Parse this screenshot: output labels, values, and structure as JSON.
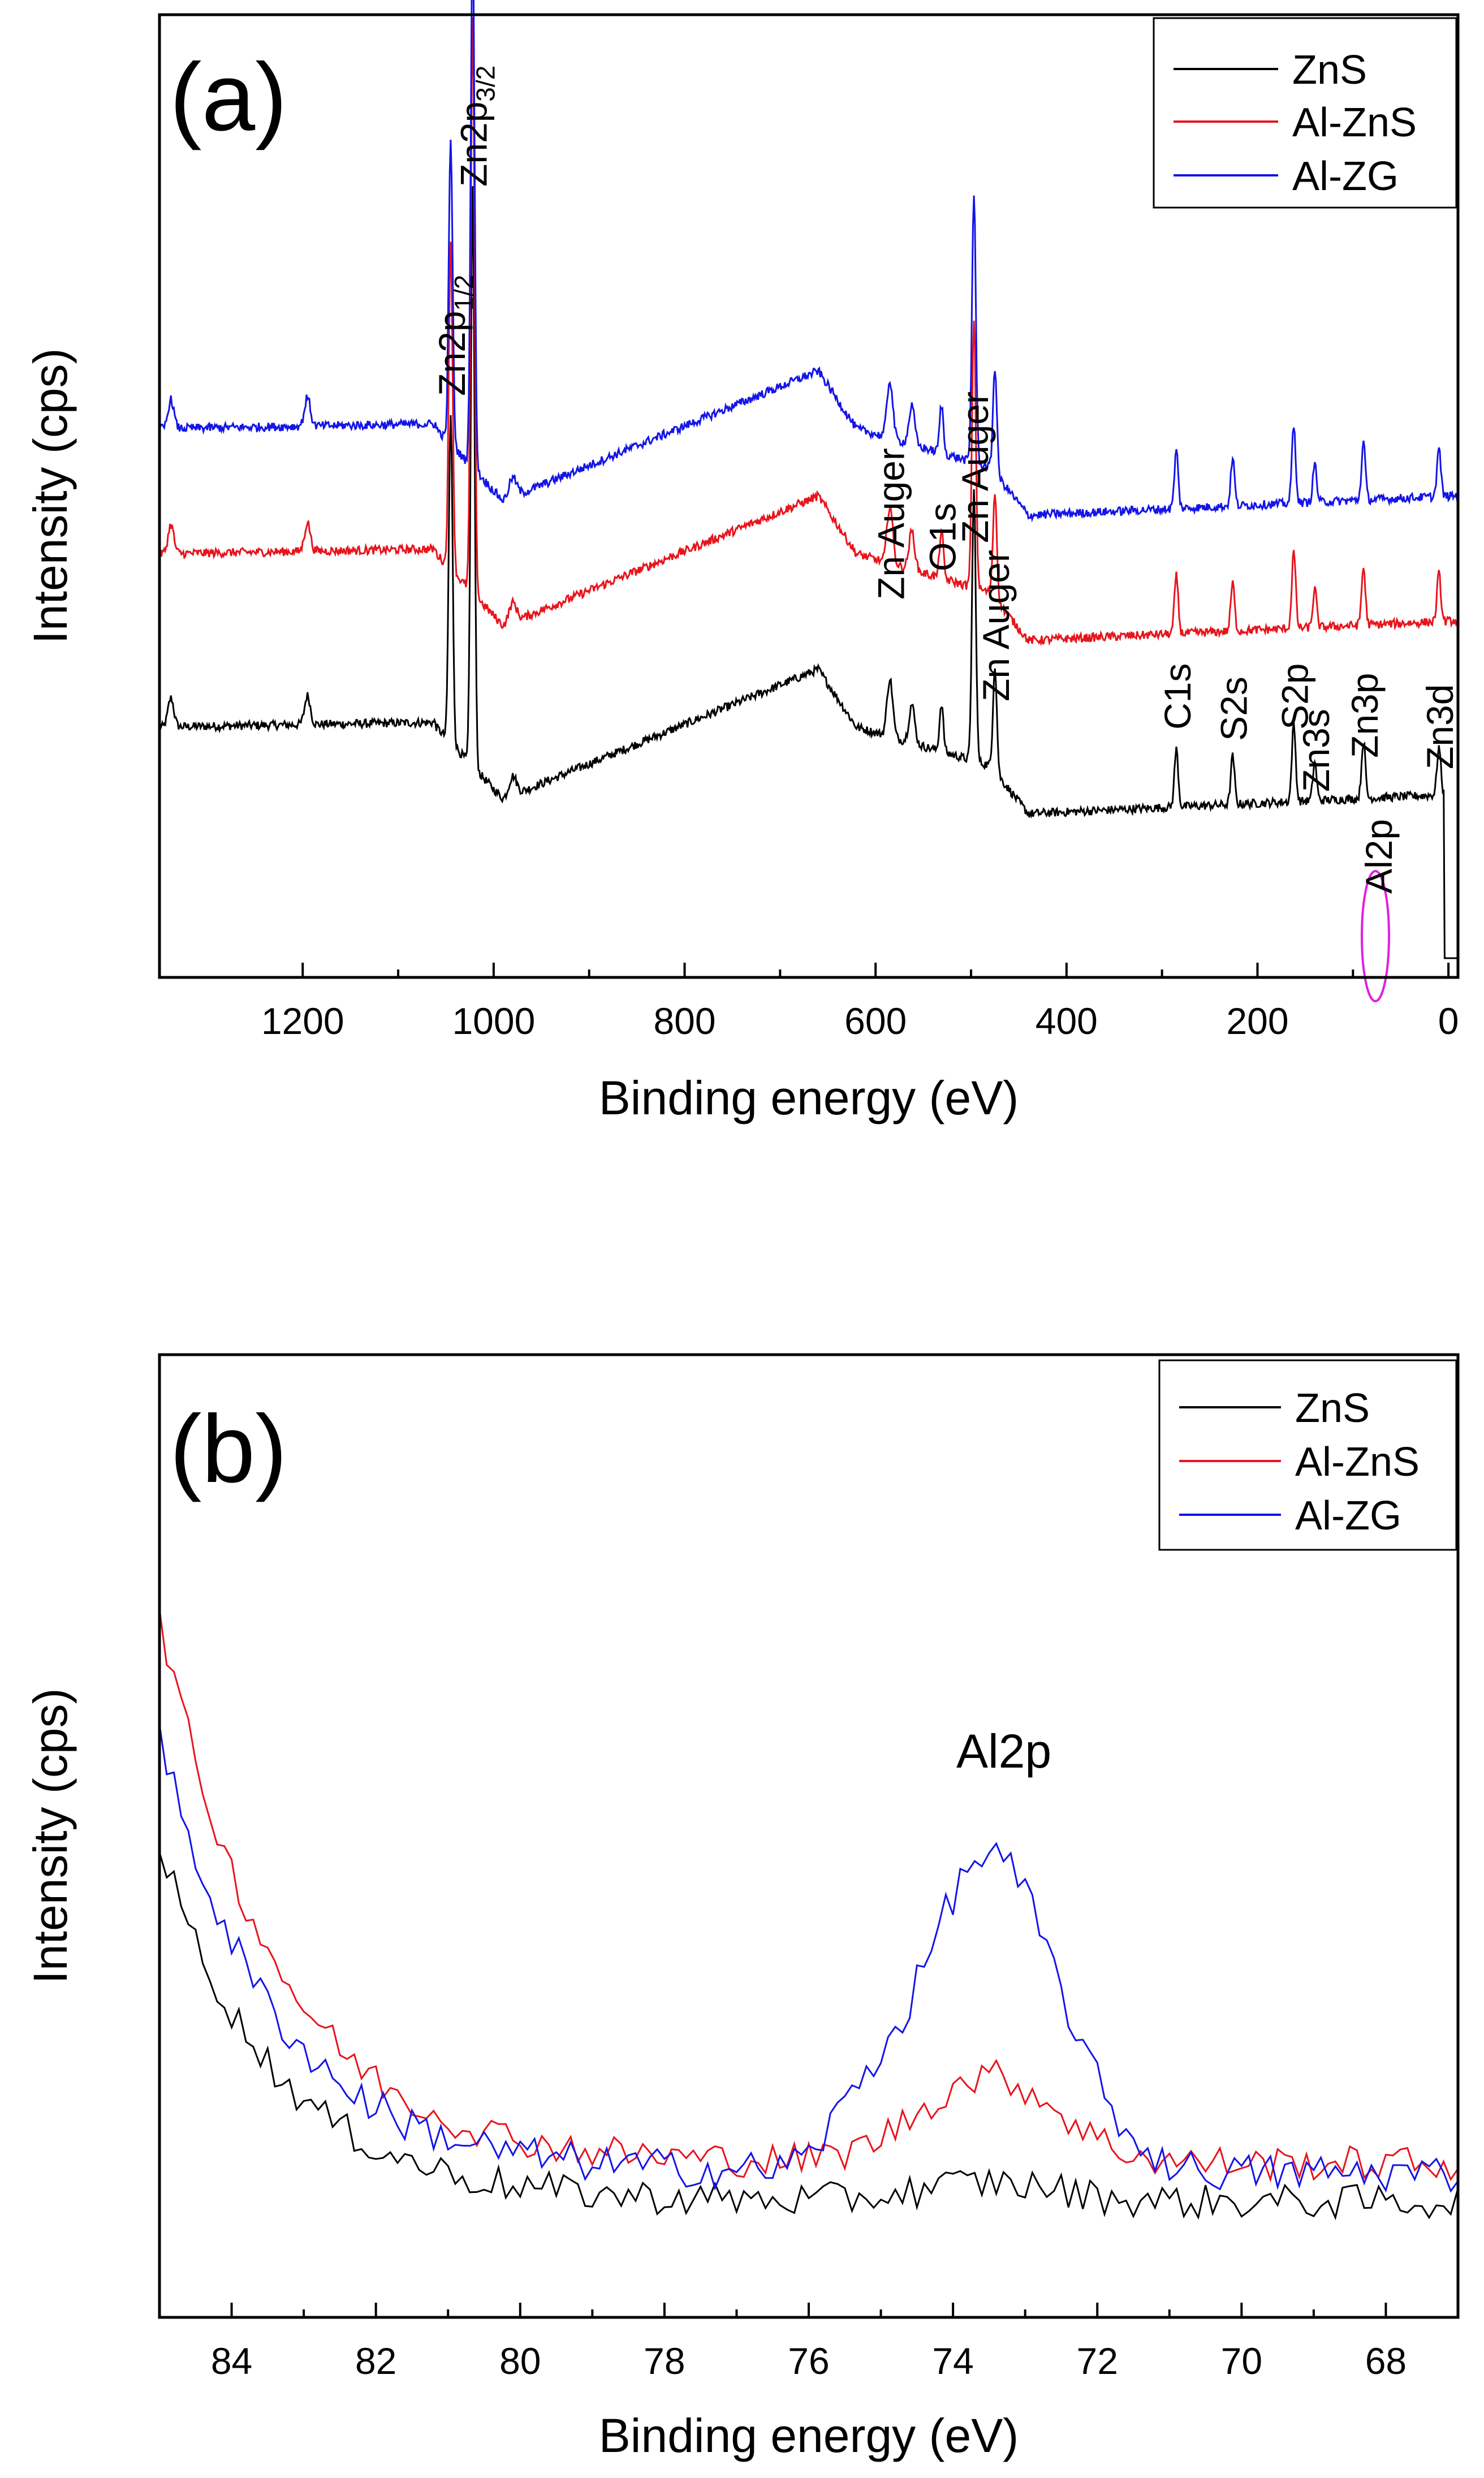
{
  "colors": {
    "ZnS": "#000000",
    "Al-ZnS": "#e8141c",
    "Al-ZG": "#1414e8",
    "ellipse": "#e020e0",
    "axis": "#000000"
  },
  "chart_data": [
    {
      "type": "line",
      "panel_label": "(a)",
      "xlabel": "Binding energy (eV)",
      "ylabel": "Intensity (cps)",
      "xlim": [
        1350,
        -10
      ],
      "ylim": [
        0,
        100
      ],
      "x_ticks": [
        1200,
        1000,
        800,
        600,
        400,
        200,
        0
      ],
      "x_tick_labels": [
        "1200",
        "1000",
        "800",
        "600",
        "400",
        "200",
        "0"
      ],
      "legend": [
        "ZnS",
        "Al-ZnS",
        "Al-ZG"
      ],
      "legend_position": "top-right",
      "peak_labels": [
        {
          "text": "Zn2p",
          "sub": "1/2",
          "x": 1045
        },
        {
          "text": "Zn2p",
          "sub": "3/2",
          "x": 1022
        },
        {
          "text": "Zn Auger",
          "sub": "",
          "x": 585
        },
        {
          "text": "O1s",
          "sub": "",
          "x": 531
        },
        {
          "text": "Zn Auger",
          "sub": "",
          "x": 497
        },
        {
          "text": "Zn Auger",
          "sub": "",
          "x": 475
        },
        {
          "text": "C1s",
          "sub": "",
          "x": 285
        },
        {
          "text": "S2s",
          "sub": "",
          "x": 226
        },
        {
          "text": "S2p",
          "sub": "",
          "x": 162
        },
        {
          "text": "Zn3s",
          "sub": "",
          "x": 140
        },
        {
          "text": "Zn3p",
          "sub": "",
          "x": 89
        },
        {
          "text": "Al2p",
          "sub": "",
          "x": 74
        },
        {
          "text": "Zn3d",
          "sub": "",
          "x": 10
        }
      ],
      "series": [
        {
          "name": "ZnS",
          "offset": 22,
          "scale": 1.0
        },
        {
          "name": "Al-ZnS",
          "offset": 40,
          "scale": 1.0
        },
        {
          "name": "Al-ZG",
          "offset": 53,
          "scale": 1.0
        }
      ],
      "peaks": [
        {
          "x": 1045,
          "h": 34,
          "w": 2.0
        },
        {
          "x": 1022,
          "h": 60,
          "w": 2.0
        },
        {
          "x": 980,
          "h": 2,
          "w": 4
        },
        {
          "x": 1195,
          "h": 3,
          "w": 3
        },
        {
          "x": 1338,
          "h": 3,
          "w": 3
        },
        {
          "x": 585,
          "h": 6,
          "w": 3
        },
        {
          "x": 562,
          "h": 4,
          "w": 3
        },
        {
          "x": 531,
          "h": 5,
          "w": 2
        },
        {
          "x": 497,
          "h": 28,
          "w": 2
        },
        {
          "x": 475,
          "h": 11,
          "w": 2
        },
        {
          "x": 285,
          "h": 6,
          "w": 2
        },
        {
          "x": 226,
          "h": 5,
          "w": 2
        },
        {
          "x": 162,
          "h": 8,
          "w": 2
        },
        {
          "x": 140,
          "h": 4,
          "w": 2
        },
        {
          "x": 89,
          "h": 6,
          "w": 2
        },
        {
          "x": 10,
          "h": 5,
          "w": 2
        }
      ]
    },
    {
      "type": "line",
      "panel_label": "(b)",
      "xlabel": "Binding energy (eV)",
      "ylabel": "Intensity (cps)",
      "xlim": [
        85,
        67
      ],
      "ylim": [
        0,
        100
      ],
      "x_ticks": [
        84,
        82,
        80,
        78,
        76,
        74,
        72,
        70,
        68
      ],
      "x_tick_labels": [
        "84",
        "82",
        "80",
        "78",
        "76",
        "74",
        "72",
        "70",
        "68"
      ],
      "legend": [
        "ZnS",
        "Al-ZnS",
        "Al-ZG"
      ],
      "legend_position": "top-right",
      "annotation": {
        "text": "Al2p",
        "x": 73.5
      },
      "series": [
        {
          "name": "ZnS",
          "base": 12,
          "tail": 37,
          "peak_h": 2,
          "noise": 1.8
        },
        {
          "name": "Al-ZnS",
          "base": 16,
          "tail": 57,
          "peak_h": 9,
          "noise": 1.8
        },
        {
          "name": "Al-ZG",
          "base": 15,
          "tail": 45,
          "peak_h": 33,
          "noise": 2.0
        }
      ]
    }
  ]
}
